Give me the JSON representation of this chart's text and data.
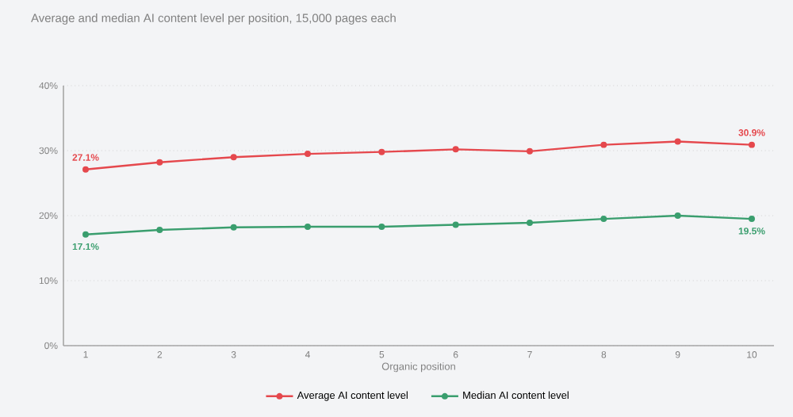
{
  "chart_data": {
    "type": "line",
    "title": "Average and median AI content level per position, 15,000 pages each",
    "xlabel": "Organic position",
    "categories": [
      "1",
      "2",
      "3",
      "4",
      "5",
      "6",
      "7",
      "8",
      "9",
      "10"
    ],
    "series": [
      {
        "name": "Average AI content level",
        "color": "#e5484d",
        "values": [
          27.1,
          28.2,
          29.0,
          29.5,
          29.8,
          30.2,
          29.9,
          30.9,
          31.4,
          30.9
        ],
        "value_labels": [
          "27.1%",
          null,
          null,
          null,
          null,
          null,
          null,
          null,
          null,
          "30.9%"
        ]
      },
      {
        "name": "Median AI content level",
        "color": "#3a9e6e",
        "values": [
          17.1,
          17.8,
          18.2,
          18.3,
          18.3,
          18.6,
          18.9,
          19.5,
          20.0,
          19.5
        ],
        "value_labels": [
          "17.1%",
          null,
          null,
          null,
          null,
          null,
          null,
          null,
          null,
          "19.5%"
        ]
      }
    ],
    "ylim": [
      0,
      40
    ],
    "yticks": [
      {
        "value": 0,
        "label": "0%"
      },
      {
        "value": 10,
        "label": "10%"
      },
      {
        "value": 20,
        "label": "20%"
      },
      {
        "value": 30,
        "label": "30%"
      },
      {
        "value": 40,
        "label": "40%"
      }
    ],
    "grid": "y",
    "legend": "bottom",
    "marker": "circle",
    "line_style": "solid"
  }
}
